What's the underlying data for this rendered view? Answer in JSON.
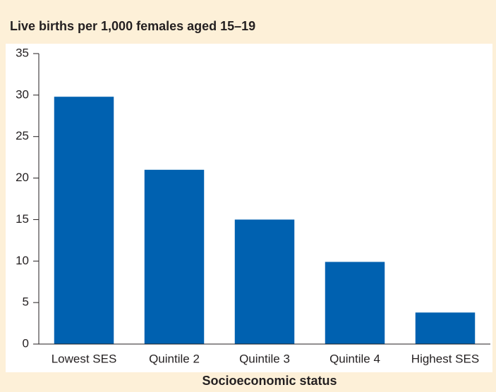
{
  "chart_data": {
    "type": "bar",
    "title": "Live births per 1,000 females aged 15–19",
    "x_label": "Socioeconomic status",
    "categories": [
      "Lowest SES",
      "Quintile 2",
      "Quintile 3",
      "Quintile 4",
      "Highest SES"
    ],
    "values": [
      29.8,
      21.0,
      15.0,
      9.9,
      3.8
    ],
    "color": "#0061b0",
    "ylim": [
      0,
      35
    ],
    "yticks": [
      0,
      5,
      10,
      15,
      20,
      25,
      30,
      35
    ],
    "grid": false
  }
}
